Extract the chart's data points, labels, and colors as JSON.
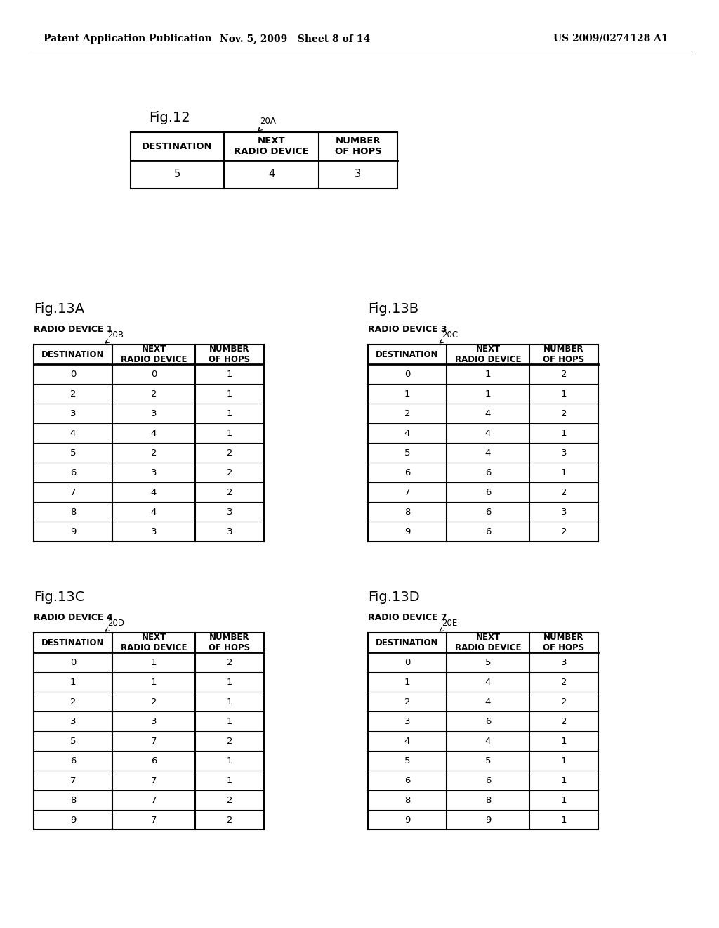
{
  "bg_color": "#ffffff",
  "header_text": {
    "left": "Patent Application Publication",
    "center": "Nov. 5, 2009   Sheet 8 of 14",
    "right": "US 2009/0274128 A1"
  },
  "fig12": {
    "title": "Fig.12",
    "label": "20A",
    "header": [
      "DESTINATION",
      "NEXT\nRADIO DEVICE",
      "NUMBER\nOF HOPS"
    ],
    "data": [
      [
        5,
        4,
        3
      ]
    ]
  },
  "fig13A": {
    "title": "Fig.13A",
    "device_label": "RADIO DEVICE 1",
    "table_label": "20B",
    "header": [
      "DESTINATION",
      "NEXT\nRADIO DEVICE",
      "NUMBER\nOF HOPS"
    ],
    "data": [
      [
        0,
        0,
        1
      ],
      [
        2,
        2,
        1
      ],
      [
        3,
        3,
        1
      ],
      [
        4,
        4,
        1
      ],
      [
        5,
        2,
        2
      ],
      [
        6,
        3,
        2
      ],
      [
        7,
        4,
        2
      ],
      [
        8,
        4,
        3
      ],
      [
        9,
        3,
        3
      ]
    ]
  },
  "fig13B": {
    "title": "Fig.13B",
    "device_label": "RADIO DEVICE 3",
    "table_label": "20C",
    "header": [
      "DESTINATION",
      "NEXT\nRADIO DEVICE",
      "NUMBER\nOF HOPS"
    ],
    "data": [
      [
        0,
        1,
        2
      ],
      [
        1,
        1,
        1
      ],
      [
        2,
        4,
        2
      ],
      [
        4,
        4,
        1
      ],
      [
        5,
        4,
        3
      ],
      [
        6,
        6,
        1
      ],
      [
        7,
        6,
        2
      ],
      [
        8,
        6,
        3
      ],
      [
        9,
        6,
        2
      ]
    ]
  },
  "fig13C": {
    "title": "Fig.13C",
    "device_label": "RADIO DEVICE 4",
    "table_label": "20D",
    "header": [
      "DESTINATION",
      "NEXT\nRADIO DEVICE",
      "NUMBER\nOF HOPS"
    ],
    "data": [
      [
        0,
        1,
        2
      ],
      [
        1,
        1,
        1
      ],
      [
        2,
        2,
        1
      ],
      [
        3,
        3,
        1
      ],
      [
        5,
        7,
        2
      ],
      [
        6,
        6,
        1
      ],
      [
        7,
        7,
        1
      ],
      [
        8,
        7,
        2
      ],
      [
        9,
        7,
        2
      ]
    ]
  },
  "fig13D": {
    "title": "Fig.13D",
    "device_label": "RADIO DEVICE 7",
    "table_label": "20E",
    "header": [
      "DESTINATION",
      "NEXT\nRADIO DEVICE",
      "NUMBER\nOF HOPS"
    ],
    "data": [
      [
        0,
        5,
        3
      ],
      [
        1,
        4,
        2
      ],
      [
        2,
        4,
        2
      ],
      [
        3,
        6,
        2
      ],
      [
        4,
        4,
        1
      ],
      [
        5,
        5,
        1
      ],
      [
        6,
        6,
        1
      ],
      [
        8,
        8,
        1
      ],
      [
        9,
        9,
        1
      ]
    ]
  }
}
